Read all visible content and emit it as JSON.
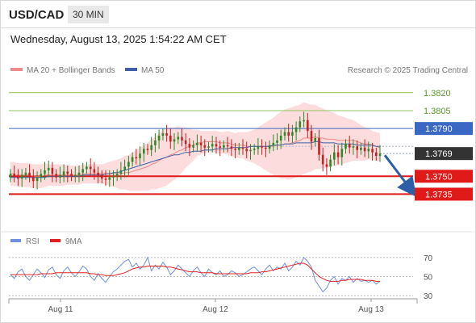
{
  "header": {
    "pair": "USD/CAD",
    "timeframe": "30 MIN",
    "timestamp": "Wednesday, August 13, 2025 1:54:22 AM CET"
  },
  "legend": {
    "ma20": "MA 20 + Bollinger Bands",
    "ma50": "MA 50",
    "credit": "Research © 2025 Trading Central"
  },
  "indicator_legend": {
    "rsi": "RSI",
    "ma": "9MA"
  },
  "colors": {
    "resistance": "#8fc45b",
    "pivot": "#3b68c4",
    "support": "#e01919",
    "current": "#333333",
    "candle_up": "#2a8a2a",
    "candle_down": "#c62020",
    "bollinger_fill": "#fbd6d6",
    "ma20": "#ee8888",
    "ma50": "#3d5fa8",
    "rsi_line": "#6f8fe0",
    "rsi_ma": "#e02020",
    "arrow": "#2d5fa8"
  },
  "chart_data": [
    {
      "type": "candlestick",
      "ylim": [
        1.3715,
        1.383
      ],
      "x_labels": [
        "Aug 11",
        "Aug 12",
        "Aug 13"
      ],
      "levels": [
        {
          "label": "1.3820",
          "value": 1.382,
          "kind": "resistance"
        },
        {
          "label": "1.3805",
          "value": 1.3805,
          "kind": "resistance"
        },
        {
          "label": "1.3790",
          "value": 1.379,
          "kind": "pivot"
        },
        {
          "label": "1.3769",
          "value": 1.3769,
          "kind": "current"
        },
        {
          "label": "1.3750",
          "value": 1.375,
          "kind": "support"
        },
        {
          "label": "1.3735",
          "value": 1.3735,
          "kind": "support"
        }
      ],
      "closes": [
        1.3752,
        1.375,
        1.3748,
        1.3751,
        1.3753,
        1.375,
        1.3746,
        1.3749,
        1.3752,
        1.3755,
        1.3757,
        1.3752,
        1.3749,
        1.3751,
        1.3754,
        1.3752,
        1.375,
        1.3751,
        1.3753,
        1.3756,
        1.3758,
        1.3756,
        1.3753,
        1.3751,
        1.3748,
        1.3747,
        1.3749,
        1.375,
        1.3752,
        1.3755,
        1.3758,
        1.3762,
        1.3766,
        1.3765,
        1.3769,
        1.3773,
        1.3772,
        1.3776,
        1.378,
        1.3784,
        1.3786,
        1.3784,
        1.3779,
        1.3781,
        1.3783,
        1.378,
        1.3777,
        1.3774,
        1.3776,
        1.3778,
        1.3776,
        1.3774,
        1.3775,
        1.3777,
        1.3775,
        1.3774,
        1.3776,
        1.3775,
        1.3773,
        1.3772,
        1.3774,
        1.3773,
        1.3771,
        1.3772,
        1.3773,
        1.3775,
        1.3774,
        1.3773,
        1.3776,
        1.3778,
        1.378,
        1.3784,
        1.3787,
        1.3784,
        1.3787,
        1.3791,
        1.3796,
        1.3797,
        1.3788,
        1.3779,
        1.3782,
        1.3768,
        1.376,
        1.3758,
        1.3764,
        1.377,
        1.3766,
        1.3773,
        1.3777,
        1.3774,
        1.3775,
        1.3772,
        1.3774,
        1.3771,
        1.3773,
        1.377,
        1.3767,
        1.3769
      ],
      "ma20": [
        1.3752,
        1.3752,
        1.3751,
        1.3751,
        1.3751,
        1.3751,
        1.375,
        1.375,
        1.375,
        1.3751,
        1.3751,
        1.3751,
        1.3751,
        1.3751,
        1.3751,
        1.3751,
        1.3751,
        1.3751,
        1.3751,
        1.3752,
        1.3752,
        1.3752,
        1.3752,
        1.3752,
        1.3752,
        1.3752,
        1.3752,
        1.3752,
        1.3752,
        1.3752,
        1.3753,
        1.3753,
        1.3754,
        1.3755,
        1.3756,
        1.3757,
        1.3758,
        1.376,
        1.3761,
        1.3763,
        1.3765,
        1.3766,
        1.3768,
        1.3769,
        1.3771,
        1.3772,
        1.3774,
        1.3775,
        1.3776,
        1.3778,
        1.3778,
        1.3779,
        1.3779,
        1.3779,
        1.3779,
        1.3778,
        1.3778,
        1.3778,
        1.3777,
        1.3776,
        1.3776,
        1.3776,
        1.3775,
        1.3775,
        1.3775,
        1.3775,
        1.3775,
        1.3775,
        1.3775,
        1.3775,
        1.3776,
        1.3776,
        1.3777,
        1.3777,
        1.3778,
        1.3779,
        1.378,
        1.3782,
        1.3782,
        1.3782,
        1.3783,
        1.3782,
        1.3782,
        1.3781,
        1.3781,
        1.3781,
        1.378,
        1.378,
        1.378,
        1.378,
        1.378,
        1.3779,
        1.3778,
        1.3777,
        1.3777,
        1.3776,
        1.3775,
        1.3774
      ],
      "ma50": [
        1.3749,
        1.3749,
        1.3749,
        1.3749,
        1.3749,
        1.3749,
        1.3749,
        1.3749,
        1.3749,
        1.3749,
        1.375,
        1.375,
        1.375,
        1.375,
        1.375,
        1.375,
        1.375,
        1.375,
        1.375,
        1.3751,
        1.3751,
        1.3751,
        1.3751,
        1.3751,
        1.3751,
        1.3752,
        1.3752,
        1.3753,
        1.3753,
        1.3754,
        1.3755,
        1.3756,
        1.3757,
        1.3758,
        1.3759,
        1.376,
        1.3761,
        1.3762,
        1.3763,
        1.3764,
        1.3765,
        1.3766,
        1.3767,
        1.3768,
        1.3768,
        1.3769,
        1.377,
        1.377,
        1.3771,
        1.3771,
        1.3771,
        1.3772,
        1.3772,
        1.3772,
        1.3773,
        1.3773,
        1.3773,
        1.3773,
        1.3774,
        1.3774,
        1.3774,
        1.3774,
        1.3774,
        1.3775,
        1.3775,
        1.3775,
        1.3775,
        1.3775,
        1.3775,
        1.3776,
        1.3776,
        1.3776,
        1.3777,
        1.3777,
        1.3777,
        1.3778,
        1.3778,
        1.3778,
        1.3778,
        1.3778,
        1.3779,
        1.3779,
        1.3778,
        1.3778,
        1.3778,
        1.3778,
        1.3777,
        1.3777,
        1.3777,
        1.3777,
        1.3777,
        1.3776,
        1.3776,
        1.3776,
        1.3776,
        1.3776,
        1.3775,
        1.3775
      ],
      "bb_width": [
        0.001,
        0.001,
        0.001,
        0.001,
        0.001,
        0.001,
        0.001,
        0.001,
        0.001,
        0.001,
        0.0009,
        0.0009,
        0.0009,
        0.0009,
        0.0009,
        0.0008,
        0.0008,
        0.0008,
        0.0008,
        0.0008,
        0.0008,
        0.0008,
        0.0008,
        0.0008,
        0.0008,
        0.0009,
        0.001,
        0.0011,
        0.0012,
        0.0013,
        0.0014,
        0.0015,
        0.0016,
        0.0017,
        0.0018,
        0.0019,
        0.002,
        0.0021,
        0.0022,
        0.0023,
        0.0024,
        0.0024,
        0.0023,
        0.0022,
        0.0021,
        0.0019,
        0.0017,
        0.0015,
        0.0013,
        0.0011,
        0.001,
        0.0009,
        0.0009,
        0.0009,
        0.0009,
        0.0009,
        0.0009,
        0.001,
        0.001,
        0.001,
        0.0011,
        0.0011,
        0.0012,
        0.0013,
        0.0014,
        0.0016,
        0.0018,
        0.002,
        0.0022,
        0.0024,
        0.0026,
        0.0028,
        0.0029,
        0.003,
        0.003,
        0.003,
        0.003,
        0.003,
        0.0029,
        0.0028,
        0.0027,
        0.0026,
        0.0025,
        0.0024,
        0.0023,
        0.0022,
        0.0021,
        0.002,
        0.0019,
        0.0018,
        0.0017,
        0.0016,
        0.0015,
        0.0014,
        0.0013,
        0.0012,
        0.0012,
        0.0012
      ],
      "projection": {
        "from": 1.3769,
        "to": 1.3735
      }
    },
    {
      "type": "line",
      "ylim": [
        25,
        75
      ],
      "yticks": [
        "70",
        "50",
        "30"
      ],
      "series": [
        {
          "name": "RSI",
          "values": [
            52,
            48,
            55,
            58,
            50,
            46,
            52,
            58,
            54,
            49,
            57,
            60,
            52,
            48,
            56,
            60,
            54,
            50,
            55,
            61,
            58,
            50,
            46,
            53,
            48,
            44,
            50,
            55,
            58,
            62,
            66,
            68,
            60,
            64,
            58,
            62,
            70,
            56,
            62,
            58,
            65,
            60,
            52,
            56,
            62,
            58,
            54,
            50,
            56,
            60,
            54,
            50,
            58,
            54,
            52,
            56,
            50,
            52,
            56,
            54,
            50,
            52,
            55,
            58,
            60,
            56,
            52,
            58,
            62,
            56,
            60,
            58,
            64,
            56,
            60,
            66,
            62,
            70,
            66,
            60,
            46,
            40,
            34,
            38,
            46,
            50,
            42,
            48,
            46,
            50,
            44,
            48,
            45,
            46,
            44,
            46,
            42,
            45
          ]
        },
        {
          "name": "9MA",
          "values": [
            52,
            52,
            52,
            52,
            52,
            52,
            52,
            52,
            53,
            53,
            53,
            53,
            54,
            54,
            54,
            54,
            54,
            54,
            54,
            54,
            54,
            53,
            53,
            52,
            52,
            51,
            51,
            51,
            52,
            53,
            54,
            56,
            58,
            59,
            60,
            60,
            61,
            61,
            61,
            61,
            61,
            60,
            60,
            59,
            58,
            57,
            56,
            55,
            55,
            55,
            54,
            54,
            54,
            54,
            53,
            53,
            53,
            53,
            53,
            53,
            53,
            53,
            53,
            54,
            54,
            54,
            55,
            55,
            56,
            57,
            58,
            59,
            60,
            61,
            62,
            63,
            64,
            64,
            62,
            58,
            54,
            50,
            48,
            46,
            45,
            45,
            45,
            46,
            46,
            47,
            47,
            47,
            47,
            46,
            46,
            46,
            45,
            45
          ]
        }
      ]
    }
  ]
}
